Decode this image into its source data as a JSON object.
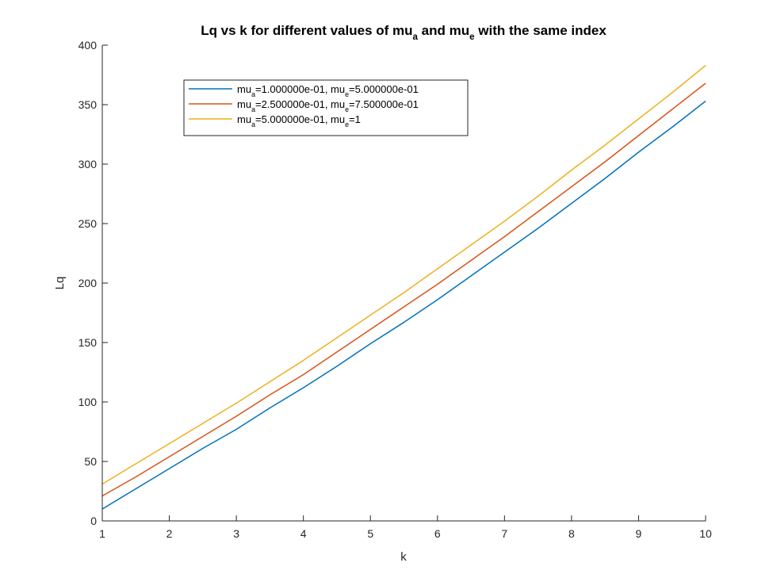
{
  "chart_data": {
    "type": "line",
    "title": {
      "parts": [
        {
          "text": "Lq vs k for different values of mu",
          "sub": false
        },
        {
          "text": "a",
          "sub": true
        },
        {
          "text": " and mu",
          "sub": false
        },
        {
          "text": "e",
          "sub": true
        },
        {
          "text": " with the same index",
          "sub": false
        }
      ]
    },
    "xlabel": "k",
    "ylabel": "Lq",
    "xlim": [
      1,
      10
    ],
    "ylim": [
      0,
      400
    ],
    "xticks": [
      1,
      2,
      3,
      4,
      5,
      6,
      7,
      8,
      9,
      10
    ],
    "yticks": [
      0,
      50,
      100,
      150,
      200,
      250,
      300,
      350,
      400
    ],
    "grid": false,
    "legend_position": "top-left",
    "x": [
      1,
      1.5,
      2,
      2.5,
      3,
      3.5,
      4,
      4.5,
      5,
      5.5,
      6,
      6.5,
      7,
      7.5,
      8,
      8.5,
      9,
      9.5,
      10
    ],
    "series": [
      {
        "name_parts": [
          {
            "text": "mu",
            "sub": false
          },
          {
            "text": "a",
            "sub": true
          },
          {
            "text": "=1.000000e-01,  mu",
            "sub": false
          },
          {
            "text": "e",
            "sub": true
          },
          {
            "text": "=5.000000e-01",
            "sub": false
          }
        ],
        "color": "#0072BD",
        "values": [
          10,
          27,
          44,
          61,
          77,
          95,
          112,
          130,
          149,
          167,
          186,
          206,
          226,
          246,
          267,
          288,
          310,
          331,
          353
        ]
      },
      {
        "name_parts": [
          {
            "text": "mu",
            "sub": false
          },
          {
            "text": "a",
            "sub": true
          },
          {
            "text": "=2.500000e-01,  mu",
            "sub": false
          },
          {
            "text": "e",
            "sub": true
          },
          {
            "text": "=7.500000e-01",
            "sub": false
          }
        ],
        "color": "#D95319",
        "values": [
          21,
          37,
          54,
          71,
          88,
          106,
          123,
          142,
          161,
          180,
          199,
          219,
          239,
          260,
          281,
          302,
          324,
          346,
          368
        ]
      },
      {
        "name_parts": [
          {
            "text": "mu",
            "sub": false
          },
          {
            "text": "a",
            "sub": true
          },
          {
            "text": "=5.000000e-01,  mu",
            "sub": false
          },
          {
            "text": "e",
            "sub": true
          },
          {
            "text": "=1",
            "sub": false
          }
        ],
        "color": "#EDB120",
        "values": [
          31,
          48,
          65,
          82,
          99,
          117,
          135,
          154,
          173,
          192,
          212,
          232,
          252,
          273,
          295,
          316,
          338,
          360,
          383
        ]
      }
    ]
  }
}
